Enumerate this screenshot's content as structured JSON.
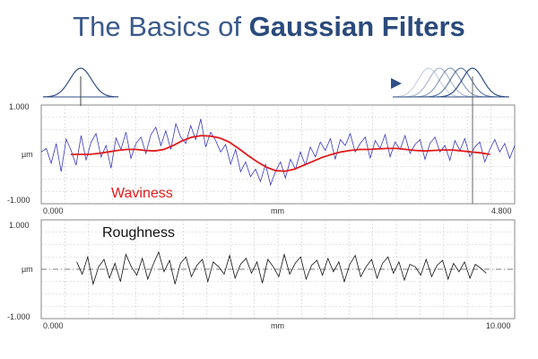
{
  "title": {
    "part1": "The Basics of ",
    "part2": "Gaussian Filters"
  },
  "colors": {
    "title": "#2e4d7e",
    "arrow": "#2f4f86",
    "noisy_line": "#3a3ab8",
    "waviness_line": "#e01b1b",
    "roughness_line": "#111111",
    "grid": "#bdbdbd",
    "frame": "#8a8a8a"
  },
  "chart_data": [
    {
      "type": "line",
      "title": "",
      "annotation": "Waviness",
      "xlabel": "mm",
      "ylabel": "µm",
      "x_tick_labels": [
        "0.000",
        "4.800"
      ],
      "y_tick_labels": [
        "1.000",
        "-1.000"
      ],
      "xlim": [
        0,
        4.8
      ],
      "ylim": [
        -1,
        1
      ],
      "grid": true,
      "series": [
        {
          "name": "",
          "role": "profile",
          "x_range": [
            0.0,
            4.8
          ],
          "values": [
            0.05,
            0.12,
            -0.18,
            0.22,
            -0.35,
            0.31,
            0.08,
            -0.22,
            0.38,
            -0.12,
            0.25,
            0.42,
            -0.05,
            0.18,
            -0.28,
            0.33,
            0.1,
            0.45,
            -0.08,
            0.22,
            0.35,
            0.02,
            0.4,
            0.55,
            0.18,
            0.48,
            0.1,
            0.62,
            0.35,
            0.22,
            0.58,
            0.3,
            0.72,
            0.15,
            0.45,
            0.28,
            0.05,
            0.2,
            -0.2,
            0.1,
            -0.35,
            -0.15,
            -0.45,
            -0.3,
            -0.55,
            -0.2,
            -0.62,
            -0.35,
            -0.15,
            -0.48,
            -0.1,
            -0.3,
            0.05,
            -0.22,
            0.15,
            -0.05,
            0.25,
            0.08,
            0.32,
            -0.1,
            0.3,
            0.18,
            0.42,
            0.05,
            0.22,
            0.35,
            -0.08,
            0.28,
            0.12,
            0.4,
            -0.05,
            0.25,
            0.1,
            0.38,
            0.02,
            0.2,
            0.3,
            -0.1,
            0.22,
            0.35,
            0.05,
            0.18,
            -0.12,
            0.28,
            0.08,
            0.32,
            -0.05,
            0.15,
            0.25,
            -0.15,
            0.1,
            0.3,
            0.05,
            0.22,
            -0.08,
            0.18
          ]
        },
        {
          "name": "Waviness",
          "role": "mean_line",
          "x_range": [
            0.3,
            4.55
          ],
          "values": [
            0.0,
            0.0,
            0.0,
            0.02,
            0.05,
            0.08,
            0.1,
            0.1,
            0.08,
            0.07,
            0.1,
            0.18,
            0.28,
            0.35,
            0.38,
            0.37,
            0.33,
            0.25,
            0.12,
            -0.02,
            -0.15,
            -0.26,
            -0.33,
            -0.34,
            -0.3,
            -0.22,
            -0.14,
            -0.06,
            0.0,
            0.05,
            0.08,
            0.1,
            0.1,
            0.11,
            0.12,
            0.12,
            0.1,
            0.08,
            0.07,
            0.08,
            0.09,
            0.09,
            0.07,
            0.05,
            0.03,
            0.0
          ]
        }
      ]
    },
    {
      "type": "line",
      "title": "",
      "annotation": "Roughness",
      "xlabel": "mm",
      "ylabel": "µm",
      "x_tick_labels": [
        "0.000",
        "10.000"
      ],
      "y_tick_labels": [
        "1.000",
        "-1.000"
      ],
      "xlim": [
        0,
        10
      ],
      "ylim": [
        -1,
        1
      ],
      "grid": true,
      "series": [
        {
          "name": "Roughness",
          "role": "profile",
          "x_range": [
            0.75,
            9.4
          ],
          "values": [
            0.15,
            -0.1,
            0.25,
            -0.3,
            0.05,
            0.2,
            -0.18,
            0.12,
            -0.25,
            0.3,
            0.05,
            -0.12,
            0.22,
            -0.2,
            0.1,
            0.35,
            -0.05,
            0.18,
            -0.3,
            0.12,
            0.25,
            -0.15,
            0.08,
            0.2,
            -0.25,
            0.15,
            0.05,
            -0.1,
            0.28,
            -0.18,
            0.1,
            0.22,
            -0.08,
            0.15,
            -0.28,
            0.2,
            0.05,
            -0.15,
            0.3,
            -0.1,
            0.12,
            0.25,
            -0.2,
            0.08,
            0.18,
            -0.12,
            0.22,
            -0.05,
            0.15,
            -0.25,
            0.1,
            0.28,
            -0.15,
            0.05,
            0.2,
            -0.18,
            0.12,
            0.25,
            -0.08,
            0.15,
            -0.22,
            0.1,
            0.05,
            -0.12,
            0.2,
            -0.15,
            0.08,
            0.18,
            -0.2,
            0.12,
            -0.05,
            0.15,
            -0.18,
            0.1,
            0.02,
            -0.08
          ]
        },
        {
          "name": "",
          "role": "zero_line",
          "values": [
            0,
            0
          ]
        }
      ]
    }
  ]
}
